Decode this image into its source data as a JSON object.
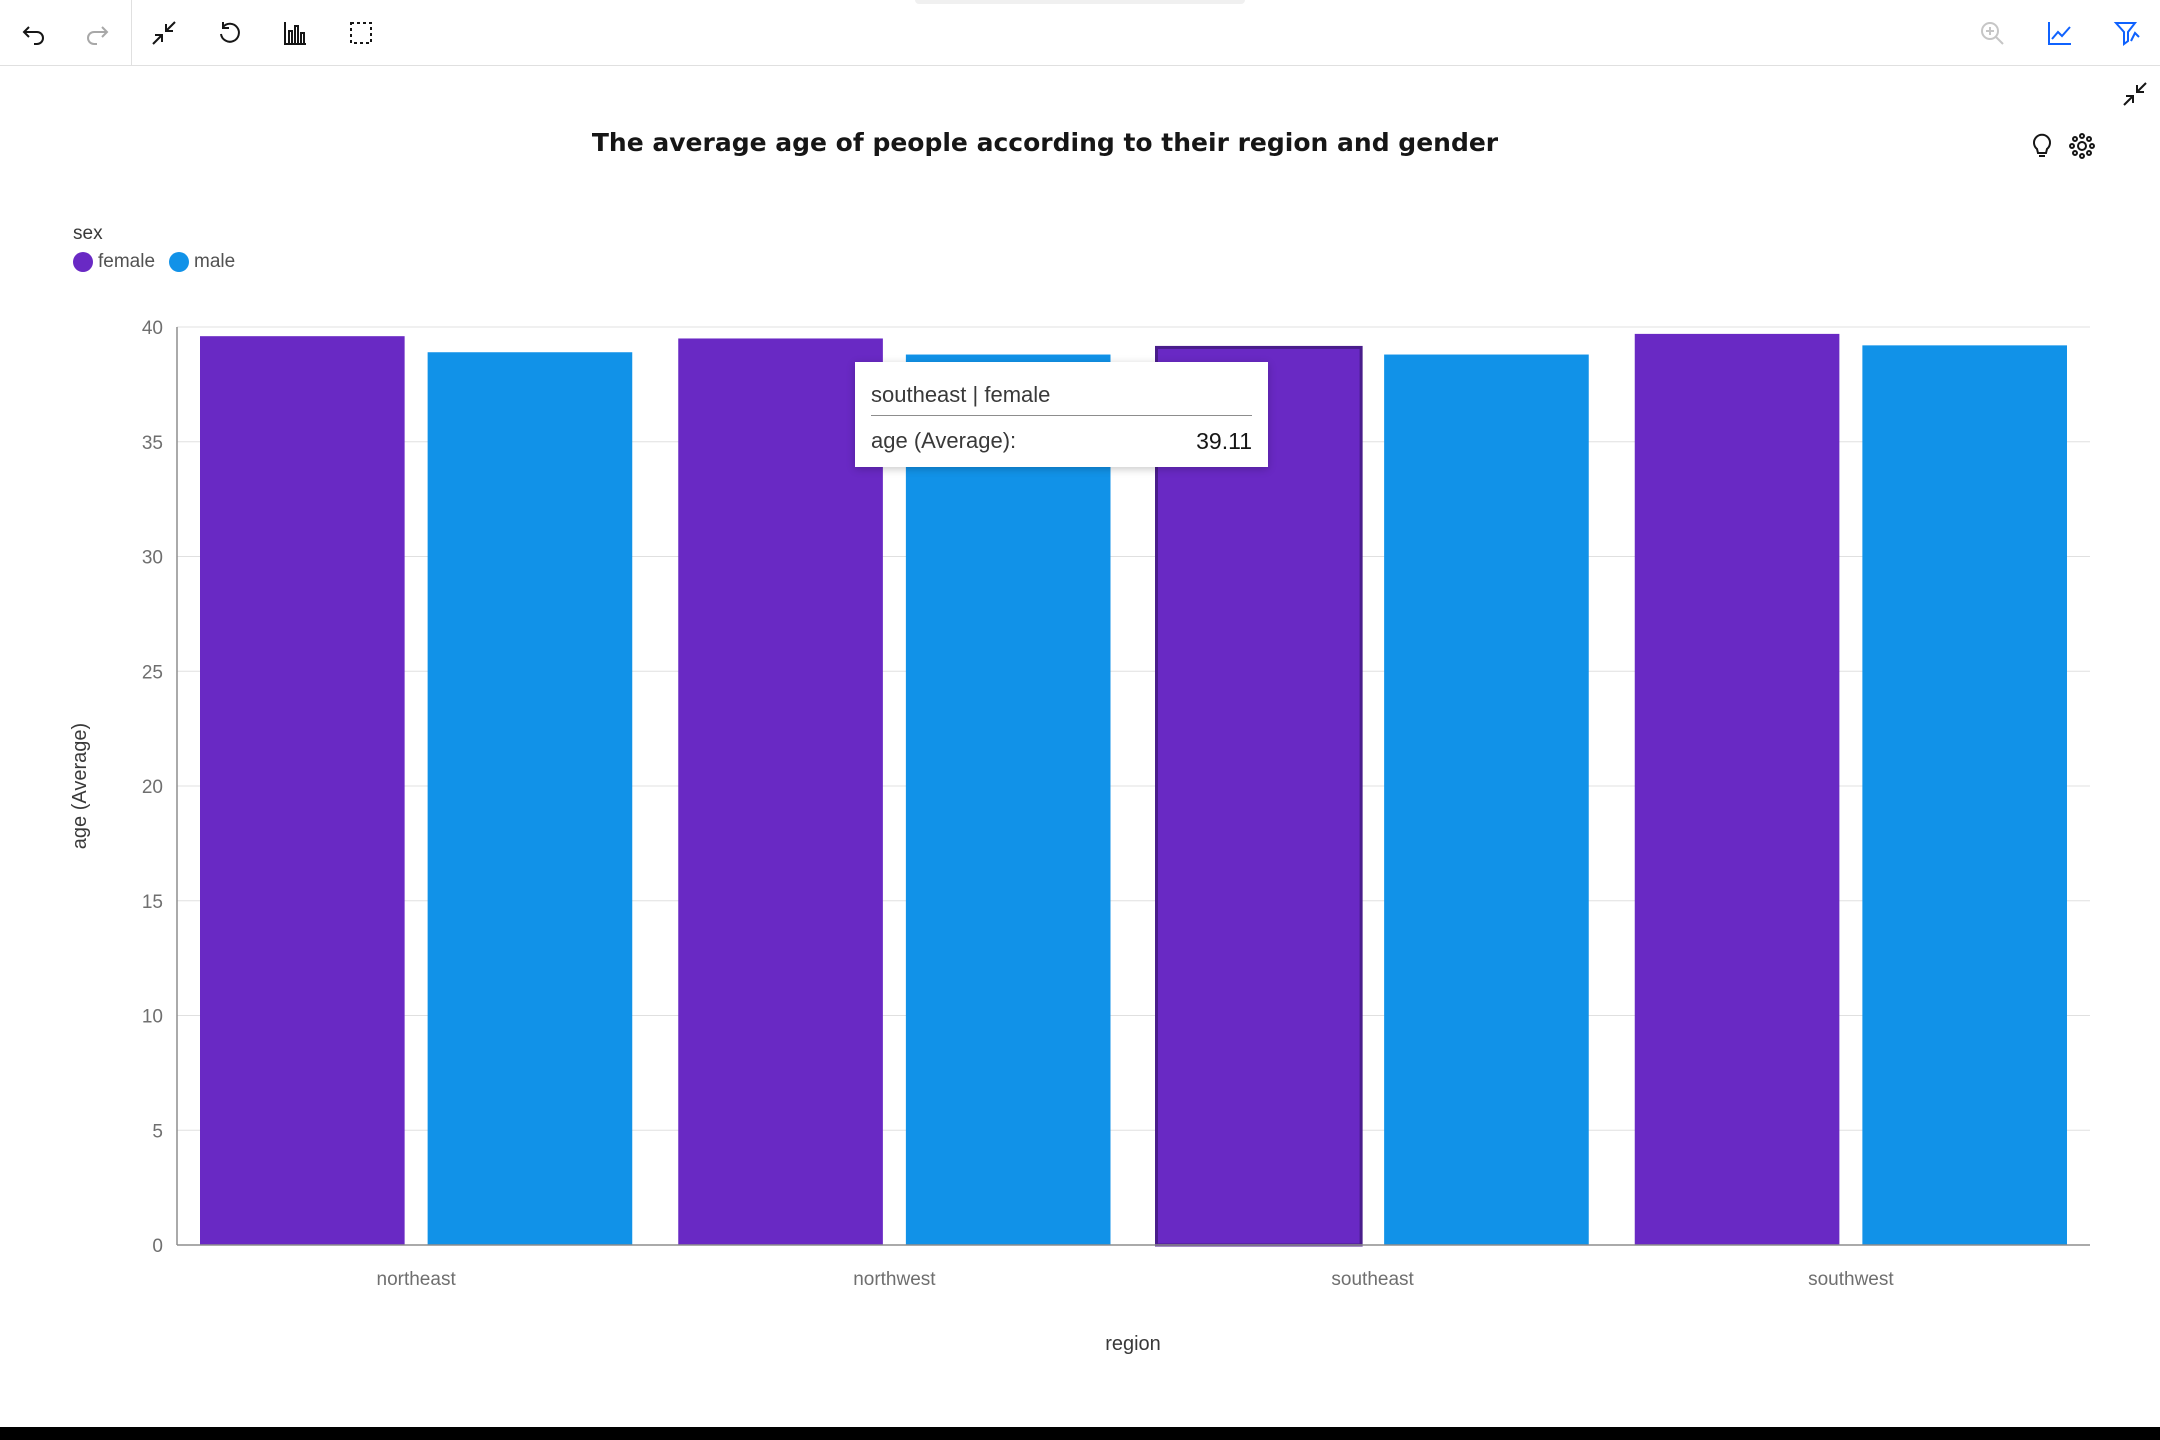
{
  "toolbar": {
    "left_icons": [
      "undo-icon",
      "redo-icon",
      "collapse-icon",
      "reset-icon",
      "bar-chart-icon",
      "selection-icon"
    ],
    "right_icons": [
      "zoom-in-icon",
      "line-chart-icon",
      "filter-icon"
    ]
  },
  "panel_icons": [
    "minimize-icon",
    "insight-bulb-icon",
    "settings-gear-icon"
  ],
  "colors": {
    "female": "#6929c4",
    "male": "#1192e8",
    "grid": "#e0e0e0",
    "axis": "#8d8d8d"
  },
  "chart_data": {
    "type": "bar",
    "title": "The average age of people according to their region and gender",
    "xlabel": "region",
    "ylabel": "age (Average)",
    "legend_title": "sex",
    "legend_position": "top-left",
    "grid": true,
    "categories": [
      "northeast",
      "northwest",
      "southeast",
      "southwest"
    ],
    "series": [
      {
        "name": "female",
        "values": [
          39.6,
          39.5,
          39.11,
          39.7
        ]
      },
      {
        "name": "male",
        "values": [
          38.9,
          38.8,
          38.8,
          39.2
        ]
      }
    ],
    "ylim": [
      0,
      40
    ],
    "yticks": [
      0,
      5,
      10,
      15,
      20,
      25,
      30,
      35,
      40
    ],
    "highlighted": {
      "category": "southeast",
      "series": "female"
    }
  },
  "tooltip": {
    "title": "southeast | female",
    "label": "age (Average):",
    "value": "39.11"
  }
}
